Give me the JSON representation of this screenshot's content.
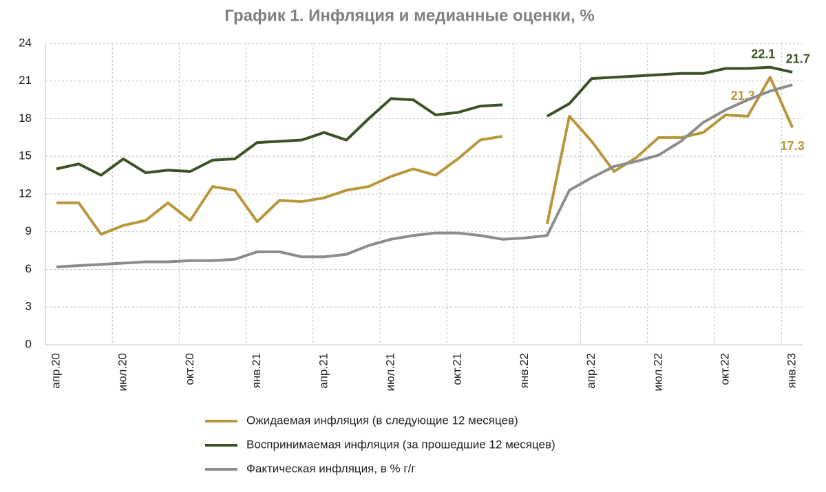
{
  "chart_data": {
    "type": "line",
    "title": "График 1. Инфляция и медианные оценки, %",
    "categories": [
      "апр.20",
      null,
      null,
      "июл.20",
      null,
      null,
      "окт.20",
      null,
      null,
      "янв.21",
      null,
      null,
      "апр.21",
      null,
      null,
      "июл.21",
      null,
      null,
      "окт.21",
      null,
      null,
      "янв.22",
      null,
      null,
      "апр.22",
      null,
      null,
      "июл.22",
      null,
      null,
      "окт.22",
      null,
      null,
      "янв.23"
    ],
    "series": [
      {
        "name": "Ожидаемая инфляция (в следующие 12 месяцев)",
        "color": "#b8973a",
        "values": [
          11.3,
          11.3,
          8.8,
          9.5,
          9.9,
          11.3,
          9.9,
          12.6,
          12.3,
          9.8,
          11.5,
          11.4,
          11.7,
          12.3,
          12.6,
          13.4,
          14.0,
          13.5,
          14.8,
          16.3,
          16.6,
          null,
          9.6,
          18.2,
          16.2,
          13.8,
          14.9,
          16.5,
          16.5,
          16.9,
          18.3,
          18.2,
          21.3,
          17.3
        ]
      },
      {
        "name": "Воспринимаемая инфляция (за прошедшие 12 месяцев)",
        "color": "#3b5323",
        "values": [
          14.0,
          14.4,
          13.5,
          14.8,
          13.7,
          13.9,
          13.8,
          14.7,
          14.8,
          16.1,
          16.2,
          16.3,
          16.9,
          16.3,
          18.0,
          19.6,
          19.5,
          18.3,
          18.5,
          19.0,
          19.1,
          null,
          18.2,
          19.2,
          21.2,
          21.3,
          21.4,
          21.5,
          21.6,
          21.6,
          22.0,
          22.0,
          22.1,
          21.7
        ]
      },
      {
        "name": "Фактическая инфляция, в % г/г",
        "color": "#8c8c8c",
        "values": [
          6.2,
          6.3,
          6.4,
          6.5,
          6.6,
          6.6,
          6.7,
          6.7,
          6.8,
          7.4,
          7.4,
          7.0,
          7.0,
          7.2,
          7.9,
          8.4,
          8.7,
          8.9,
          8.9,
          8.7,
          8.4,
          8.5,
          8.7,
          12.3,
          13.3,
          14.2,
          14.6,
          15.1,
          16.2,
          17.7,
          18.7,
          19.5,
          20.2,
          20.7
        ]
      }
    ],
    "ylim": [
      0,
      24
    ],
    "yticks": [
      0,
      3,
      6,
      9,
      12,
      15,
      18,
      21,
      24
    ],
    "grid": true
  }
}
